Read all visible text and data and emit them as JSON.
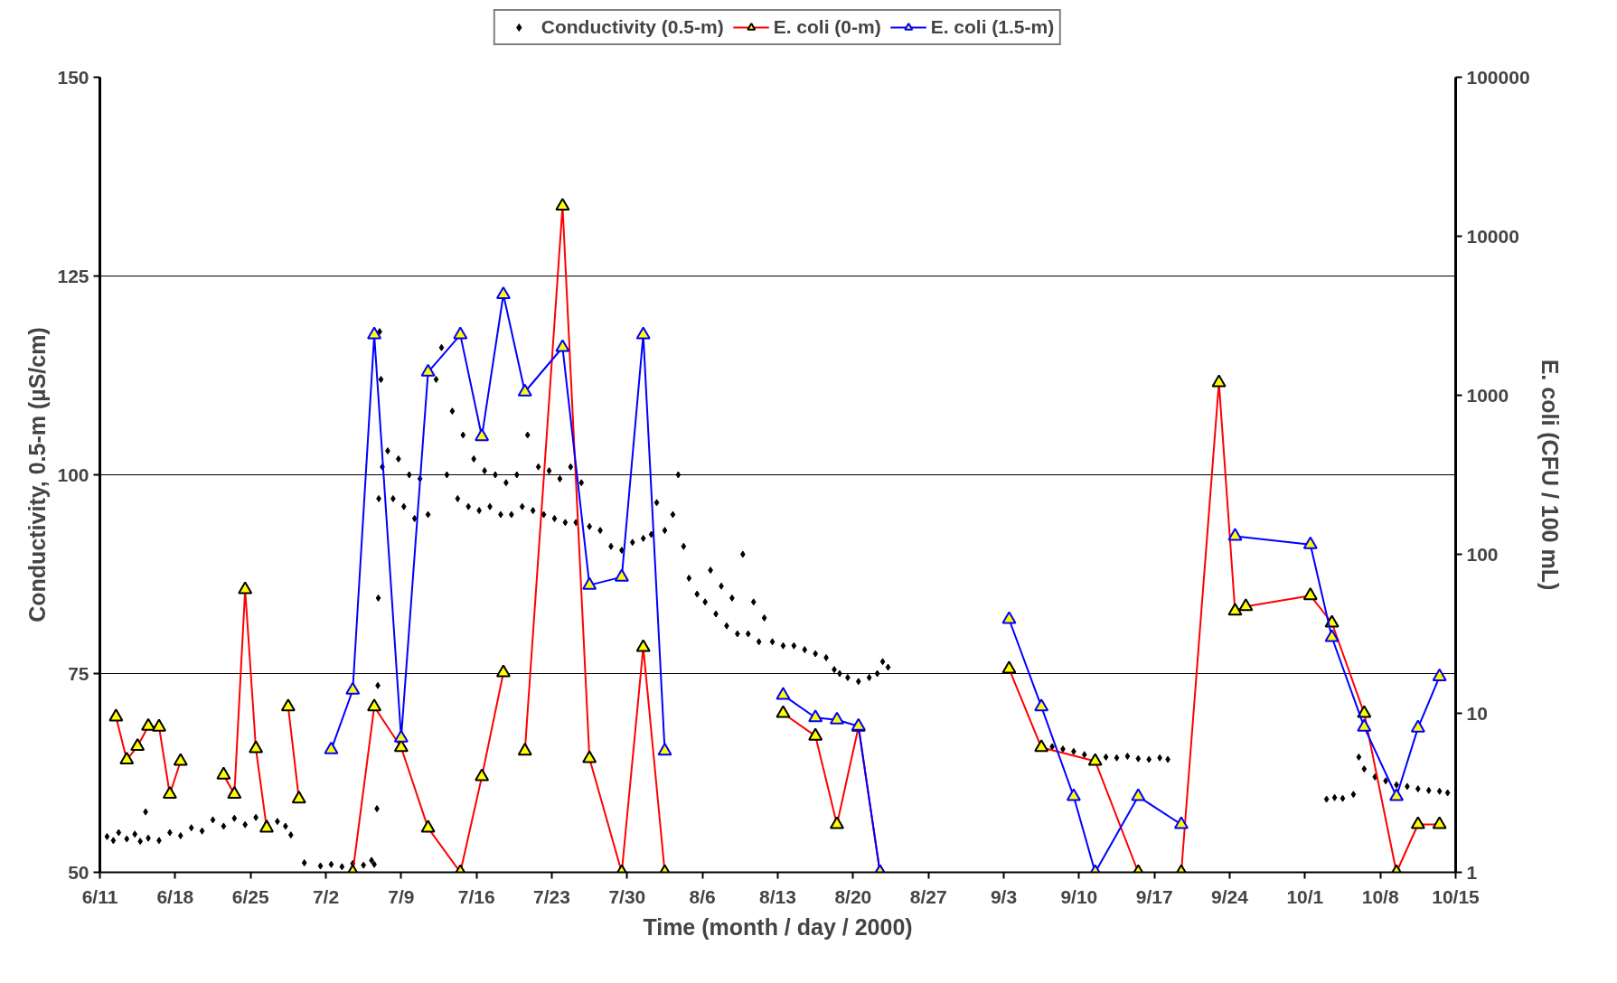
{
  "chart_data": {
    "type": "scatter",
    "xlabel": "Time (month / day / 2000)",
    "ylabel": "Conductivity, 0.5-m (µS/cm)",
    "y2label": "E. coli (CFU / 100 mL)",
    "xlim": [
      "2000-06-11",
      "2000-10-15"
    ],
    "xticks": [
      {
        "value": "2000-06-11",
        "label": "6/11"
      },
      {
        "value": "2000-06-18",
        "label": "6/18"
      },
      {
        "value": "2000-06-25",
        "label": "6/25"
      },
      {
        "value": "2000-07-02",
        "label": "7/2"
      },
      {
        "value": "2000-07-09",
        "label": "7/9"
      },
      {
        "value": "2000-07-16",
        "label": "7/16"
      },
      {
        "value": "2000-07-23",
        "label": "7/23"
      },
      {
        "value": "2000-07-30",
        "label": "7/30"
      },
      {
        "value": "2000-08-06",
        "label": "8/6"
      },
      {
        "value": "2000-08-13",
        "label": "8/13"
      },
      {
        "value": "2000-08-20",
        "label": "8/20"
      },
      {
        "value": "2000-08-27",
        "label": "8/27"
      },
      {
        "value": "2000-09-03",
        "label": "9/3"
      },
      {
        "value": "2000-09-10",
        "label": "9/10"
      },
      {
        "value": "2000-09-17",
        "label": "9/17"
      },
      {
        "value": "2000-09-24",
        "label": "9/24"
      },
      {
        "value": "2000-10-01",
        "label": "10/1"
      },
      {
        "value": "2000-10-08",
        "label": "10/8"
      },
      {
        "value": "2000-10-15",
        "label": "10/15"
      }
    ],
    "ylim": [
      50,
      150
    ],
    "yticks": [
      50,
      75,
      100,
      125,
      150
    ],
    "y2lim": [
      1,
      100000
    ],
    "y2ticks": [
      1,
      10,
      100,
      1000,
      10000,
      100000
    ],
    "log": "y2",
    "grid": "y",
    "legend": "top",
    "series": [
      {
        "name": "Conductivity (0.5-m)",
        "marker": "diamond",
        "color": "#000000",
        "x": [
          "2000-06-11T16:00",
          "2000-06-12T06:00",
          "2000-06-12T18:00",
          "2000-06-13T12:00",
          "2000-06-14T06:00",
          "2000-06-14T18:00",
          "2000-06-15T06:00",
          "2000-06-15T12:00",
          "2000-06-16T12:00",
          "2000-06-17T12:00",
          "2000-06-18T12:00",
          "2000-06-19T12:00",
          "2000-06-20T12:00",
          "2000-06-21T12:00",
          "2000-06-22T12:00",
          "2000-06-23T12:00",
          "2000-06-24T12:00",
          "2000-06-25T12:00",
          "2000-06-26T12:00",
          "2000-06-27T12:00",
          "2000-06-28T06:00",
          "2000-06-28T18:00",
          "2000-06-30T00:00",
          "2000-07-01T12:00",
          "2000-07-02T12:00",
          "2000-07-03T12:00",
          "2000-07-04T12:00",
          "2000-07-05T12:00",
          "2000-07-06T06:00",
          "2000-07-06T12:00",
          "2000-07-06T18:00",
          "2000-07-06T20:00",
          "2000-07-06T21:00",
          "2000-07-06T22:00",
          "2000-07-07T00:00",
          "2000-07-07T03:00",
          "2000-07-07T06:00",
          "2000-07-07T18:00",
          "2000-07-08T06:00",
          "2000-07-08T18:00",
          "2000-07-09T06:00",
          "2000-07-09T18:00",
          "2000-07-10T06:00",
          "2000-07-10T18:00",
          "2000-07-11T12:00",
          "2000-07-12T06:00",
          "2000-07-12T18:00",
          "2000-07-13T06:00",
          "2000-07-13T18:00",
          "2000-07-14T06:00",
          "2000-07-14T18:00",
          "2000-07-15T06:00",
          "2000-07-15T18:00",
          "2000-07-16T06:00",
          "2000-07-16T18:00",
          "2000-07-17T06:00",
          "2000-07-17T18:00",
          "2000-07-18T06:00",
          "2000-07-18T18:00",
          "2000-07-19T06:00",
          "2000-07-19T18:00",
          "2000-07-20T06:00",
          "2000-07-20T18:00",
          "2000-07-21T06:00",
          "2000-07-21T18:00",
          "2000-07-22T06:00",
          "2000-07-22T18:00",
          "2000-07-23T06:00",
          "2000-07-23T18:00",
          "2000-07-24T06:00",
          "2000-07-24T18:00",
          "2000-07-25T06:00",
          "2000-07-25T18:00",
          "2000-07-26T12:00",
          "2000-07-27T12:00",
          "2000-07-28T12:00",
          "2000-07-29T12:00",
          "2000-07-30T12:00",
          "2000-07-31T12:00",
          "2000-08-01T06:00",
          "2000-08-01T18:00",
          "2000-08-02T12:00",
          "2000-08-03T06:00",
          "2000-08-03T18:00",
          "2000-08-04T06:00",
          "2000-08-04T18:00",
          "2000-08-05T12:00",
          "2000-08-06T06:00",
          "2000-08-06T18:00",
          "2000-08-07T06:00",
          "2000-08-07T18:00",
          "2000-08-08T06:00",
          "2000-08-08T18:00",
          "2000-08-09T06:00",
          "2000-08-09T18:00",
          "2000-08-10T06:00",
          "2000-08-10T18:00",
          "2000-08-11T06:00",
          "2000-08-11T18:00",
          "2000-08-12T12:00",
          "2000-08-13T12:00",
          "2000-08-14T12:00",
          "2000-08-15T12:00",
          "2000-08-16T12:00",
          "2000-08-17T12:00",
          "2000-08-18T06:00",
          "2000-08-18T18:00",
          "2000-08-19T12:00",
          "2000-08-20T12:00",
          "2000-08-21T12:00",
          "2000-08-22T06:00",
          "2000-08-22T18:00",
          "2000-08-23T06:00",
          "2000-09-06T12:00",
          "2000-09-07T12:00",
          "2000-09-08T12:00",
          "2000-09-09T12:00",
          "2000-09-10T12:00",
          "2000-09-12T12:00",
          "2000-09-13T12:00",
          "2000-09-14T12:00",
          "2000-09-15T12:00",
          "2000-09-16T12:00",
          "2000-09-17T12:00",
          "2000-09-18T06:00",
          "2000-10-03T00:00",
          "2000-10-03T18:00",
          "2000-10-04T12:00",
          "2000-10-05T12:00",
          "2000-10-06T00:00",
          "2000-10-06T12:00",
          "2000-10-07T12:00",
          "2000-10-08T12:00",
          "2000-10-09T12:00",
          "2000-10-10T12:00",
          "2000-10-11T12:00",
          "2000-10-12T12:00",
          "2000-10-13T12:00",
          "2000-10-14T06:00"
        ],
        "values": [
          54.5,
          54.0,
          55.0,
          54.2,
          54.8,
          53.9,
          57.6,
          54.3,
          54.0,
          55.0,
          54.6,
          55.6,
          55.2,
          56.6,
          55.8,
          56.8,
          56.0,
          56.9,
          56.2,
          56.4,
          55.8,
          54.7,
          51.2,
          50.8,
          51.0,
          50.7,
          51.1,
          50.9,
          51.5,
          51.0,
          58.0,
          73.5,
          84.5,
          97.0,
          118.0,
          112.0,
          101.0,
          103.0,
          97.0,
          102.0,
          96.0,
          100.0,
          94.5,
          99.5,
          95.0,
          112.0,
          116.0,
          100.0,
          108.0,
          97.0,
          105.0,
          96.0,
          102.0,
          95.5,
          100.5,
          96.0,
          100.0,
          95.0,
          99.0,
          95.0,
          100.0,
          96.0,
          105.0,
          95.5,
          101.0,
          95.0,
          100.5,
          94.5,
          99.5,
          94.0,
          101.0,
          94.0,
          99.0,
          93.5,
          93.0,
          91.0,
          90.5,
          91.5,
          92.0,
          92.5,
          96.5,
          93.0,
          95.0,
          100.0,
          91.0,
          87.0,
          85.0,
          84.0,
          88.0,
          82.5,
          86.0,
          81.0,
          84.5,
          80.0,
          90.0,
          80.0,
          84.0,
          79.0,
          82.0,
          79.0,
          78.5,
          78.5,
          78.0,
          77.5,
          77.0,
          75.5,
          75.0,
          74.5,
          74.0,
          74.5,
          75.0,
          76.5,
          75.8,
          66.0,
          65.8,
          65.5,
          65.2,
          64.8,
          64.5,
          64.4,
          64.6,
          64.3,
          64.2,
          64.4,
          64.2,
          59.2,
          59.4,
          59.3,
          59.8,
          64.5,
          63.0,
          62.0,
          61.5,
          61.0,
          60.8,
          60.5,
          60.3,
          60.2,
          60.0
        ]
      },
      {
        "name": "E. coli (0-m)",
        "type": "line",
        "axis": "y2",
        "marker": "triangle",
        "color": "#ff0000",
        "x": [
          "2000-06-12T12:00",
          "2000-06-13T12:00",
          "2000-06-14T12:00",
          "2000-06-15T12:00",
          "2000-06-16T12:00",
          "2000-06-17T12:00",
          "2000-06-18T12:00",
          "2000-06-20T00:00",
          "2000-06-22T12:00",
          "2000-06-23T12:00",
          "2000-06-24T12:00",
          "2000-06-25T12:00",
          "2000-06-26T12:00",
          "2000-06-27T12:00",
          "2000-06-28T12:00",
          "2000-06-29T12:00",
          "2000-07-01T00:00",
          "2000-07-04T12:00",
          "2000-07-06T12:00",
          "2000-07-09T00:00",
          "2000-07-11T12:00",
          "2000-07-14T12:00",
          "2000-07-16T12:00",
          "2000-07-18T12:00",
          "2000-07-19T12:00",
          "2000-07-20T12:00",
          "2000-07-24T00:00",
          "2000-07-26T12:00",
          "2000-07-29T12:00",
          "2000-07-31T12:00",
          "2000-08-02T12:00",
          "2000-08-08T00:00",
          "2000-08-13T12:00",
          "2000-08-16T12:00",
          "2000-08-18T12:00",
          "2000-08-20T12:00",
          "2000-08-22T12:00",
          "2000-08-28T00:00",
          "2000-09-03T12:00",
          "2000-09-06T12:00",
          "2000-09-11T12:00",
          "2000-09-15T12:00",
          "2000-09-17T12:00",
          "2000-09-19T12:00",
          "2000-09-23T00:00",
          "2000-09-24T12:00",
          "2000-09-25T12:00",
          "2000-10-01T12:00",
          "2000-10-03T12:00",
          "2000-10-06T12:00",
          "2000-10-09T12:00",
          "2000-10-11T12:00",
          "2000-10-13T12:00"
        ],
        "values": [
          9.5,
          5.1,
          6.2,
          8.3,
          8.2,
          3.1,
          5.0,
          null,
          4.1,
          3.1,
          60,
          6.0,
          1.9,
          null,
          11,
          2.9,
          null,
          1,
          11,
          6.1,
          1.9,
          1,
          4.0,
          18,
          null,
          5.8,
          15500,
          5.2,
          1,
          26,
          1,
          null,
          10,
          7.2,
          2.0,
          8.2,
          1,
          null,
          19,
          6.1,
          5.0,
          1,
          null,
          1,
          1200,
          44,
          47,
          55,
          37,
          10,
          1,
          2.0,
          2.0
        ]
      },
      {
        "name": "E. coli (1.5-m)",
        "type": "line",
        "axis": "y2",
        "marker": "triangle",
        "color": "#0000ff",
        "x": [
          "2000-07-02T12:00",
          "2000-07-04T12:00",
          "2000-07-06T12:00",
          "2000-07-09T00:00",
          "2000-07-11T12:00",
          "2000-07-14T12:00",
          "2000-07-16T12:00",
          "2000-07-18T12:00",
          "2000-07-20T12:00",
          "2000-07-24T00:00",
          "2000-07-26T12:00",
          "2000-07-29T12:00",
          "2000-07-31T12:00",
          "2000-08-02T12:00",
          "2000-08-08T00:00",
          "2000-08-13T12:00",
          "2000-08-16T12:00",
          "2000-08-18T12:00",
          "2000-08-20T12:00",
          "2000-08-22T12:00",
          "2000-08-28T00:00",
          "2000-09-03T12:00",
          "2000-09-06T12:00",
          "2000-09-09T12:00",
          "2000-09-11T12:00",
          "2000-09-15T12:00",
          "2000-09-19T12:00",
          "2000-09-22T00:00",
          "2000-09-24T12:00",
          "2000-10-01T12:00",
          "2000-10-03T12:00",
          "2000-10-06T12:00",
          "2000-10-09T12:00",
          "2000-10-11T12:00",
          "2000-10-13T12:00"
        ],
        "values": [
          5.9,
          14,
          2400,
          7.0,
          1400,
          2400,
          550,
          4300,
          1050,
          2000,
          64,
          72,
          2400,
          5.8,
          null,
          13,
          9.4,
          9.1,
          8.3,
          1,
          null,
          39,
          11,
          3.0,
          1,
          3.0,
          2.0,
          null,
          130,
          115,
          30,
          8.2,
          3.0,
          8.1,
          17
        ]
      }
    ]
  }
}
